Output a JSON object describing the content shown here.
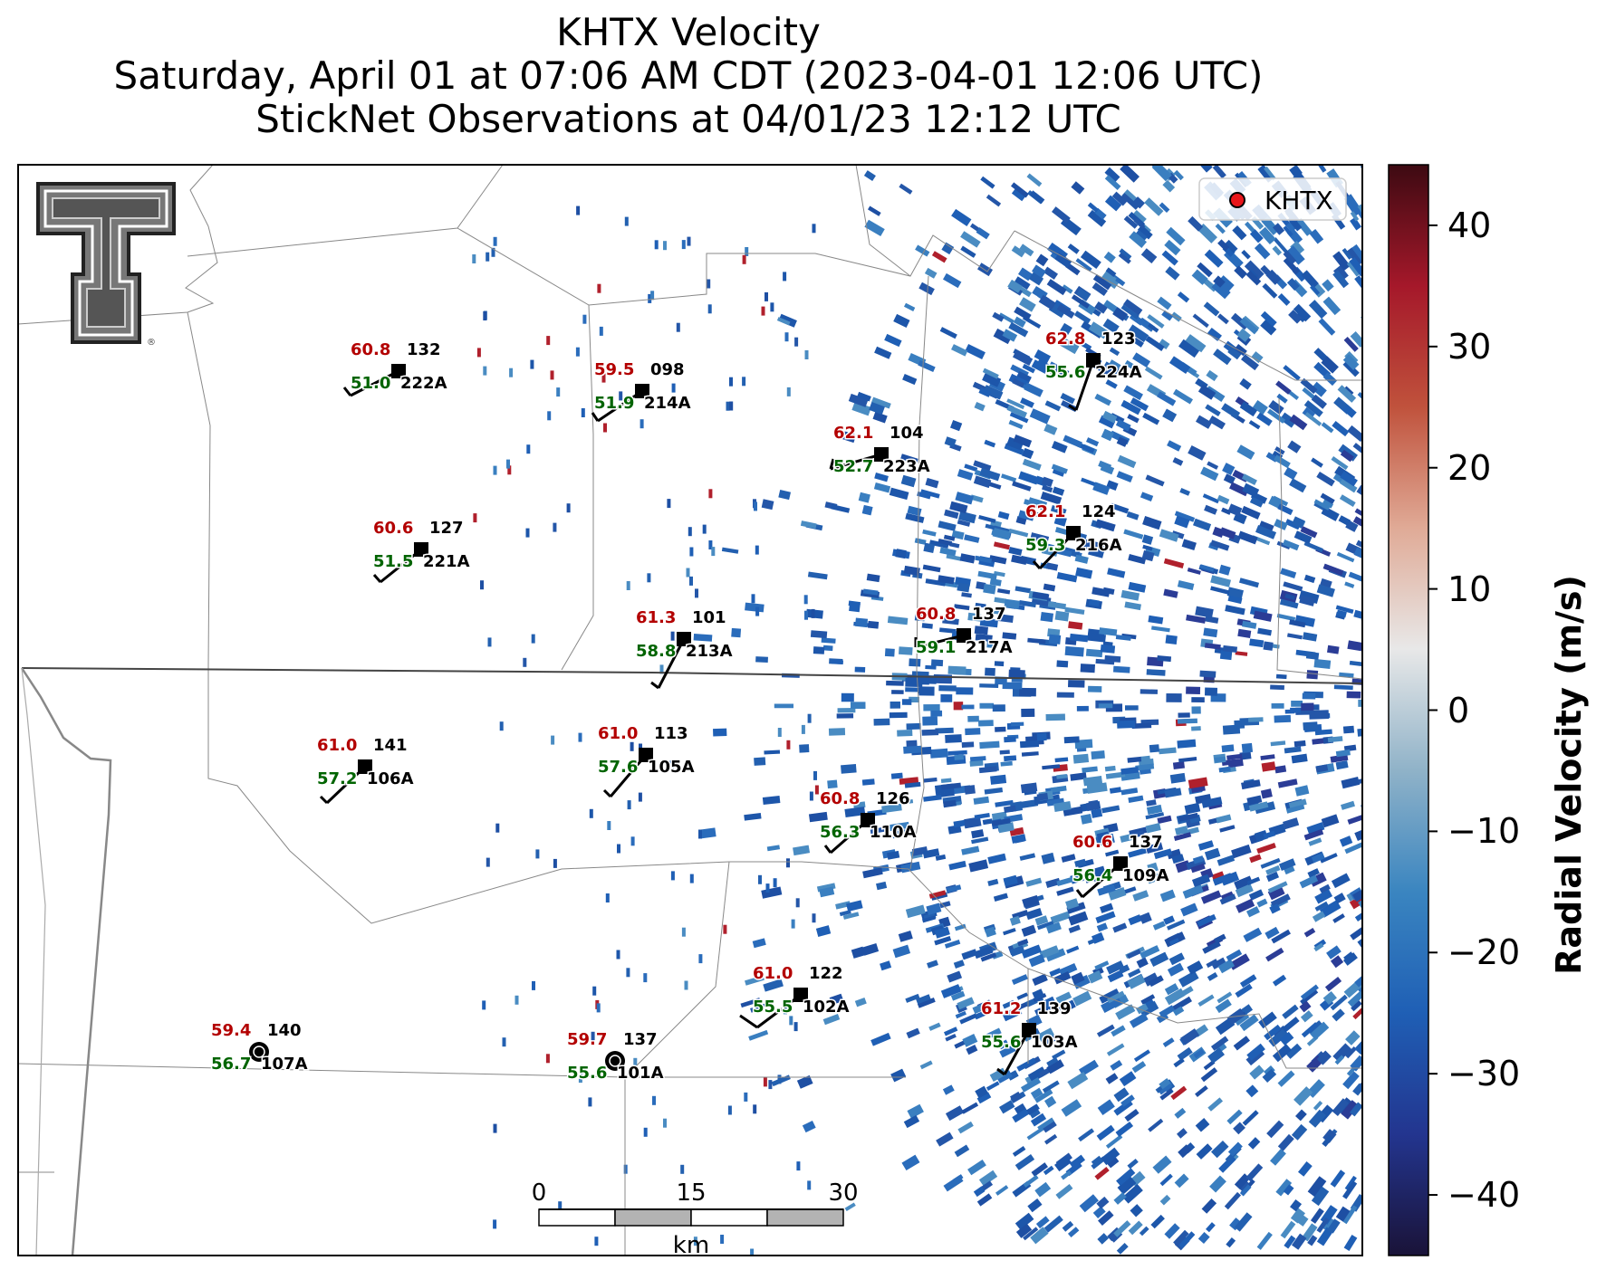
{
  "title": {
    "line1": "KHTX Velocity",
    "line2": "Saturday, April 01 at 07:06 AM CDT (2023-04-01 12:06 UTC)",
    "line3": "StickNet Observations at 04/01/23 12:12 UTC"
  },
  "legend": {
    "label": "KHTX",
    "marker_color": "#e8161b",
    "position": "top-right"
  },
  "colorbar": {
    "label": "Radial Velocity (m/s)",
    "ticks": [
      "40",
      "30",
      "20",
      "10",
      "0",
      "−10",
      "−20",
      "−30",
      "−40"
    ],
    "range": [
      -45,
      45
    ],
    "colors": [
      "#1a1338",
      "#23358f",
      "#1f5fb5",
      "#3a85c0",
      "#8fb2c8",
      "#e8e8e8",
      "#e0aa96",
      "#c0523c",
      "#a5182a",
      "#3d0a12"
    ]
  },
  "scale_bar": {
    "ticks": [
      "0",
      "15",
      "30"
    ],
    "unit": "km"
  },
  "logo": {
    "name": "Texas Tech Double T"
  },
  "stations": [
    {
      "id": "222A",
      "temp": "60.8",
      "dew": "51.0",
      "pressure": "132"
    },
    {
      "id": "214A",
      "temp": "59.5",
      "dew": "51.9",
      "pressure": "098"
    },
    {
      "id": "223A",
      "temp": "62.1",
      "dew": "52.7",
      "pressure": "104"
    },
    {
      "id": "224A",
      "temp": "62.8",
      "dew": "55.6",
      "pressure": "123"
    },
    {
      "id": "221A",
      "temp": "60.6",
      "dew": "51.5",
      "pressure": "127"
    },
    {
      "id": "216A",
      "temp": "62.1",
      "dew": "59.3",
      "pressure": "124"
    },
    {
      "id": "213A",
      "temp": "61.3",
      "dew": "58.8",
      "pressure": "101"
    },
    {
      "id": "217A",
      "temp": "60.8",
      "dew": "59.1",
      "pressure": "137"
    },
    {
      "id": "106A",
      "temp": "61.0",
      "dew": "57.2",
      "pressure": "141"
    },
    {
      "id": "105A",
      "temp": "61.0",
      "dew": "57.6",
      "pressure": "113"
    },
    {
      "id": "110A",
      "temp": "60.8",
      "dew": "56.3",
      "pressure": "126"
    },
    {
      "id": "109A",
      "temp": "60.6",
      "dew": "56.4",
      "pressure": "137"
    },
    {
      "id": "102A",
      "temp": "61.0",
      "dew": "55.5",
      "pressure": "122"
    },
    {
      "id": "103A",
      "temp": "61.2",
      "dew": "55.6",
      "pressure": "139"
    },
    {
      "id": "107A",
      "temp": "59.4",
      "dew": "56.7",
      "pressure": "140",
      "calm": true
    },
    {
      "id": "101A",
      "temp": "59.7",
      "dew": "55.6",
      "pressure": "137",
      "calm": true
    }
  ]
}
